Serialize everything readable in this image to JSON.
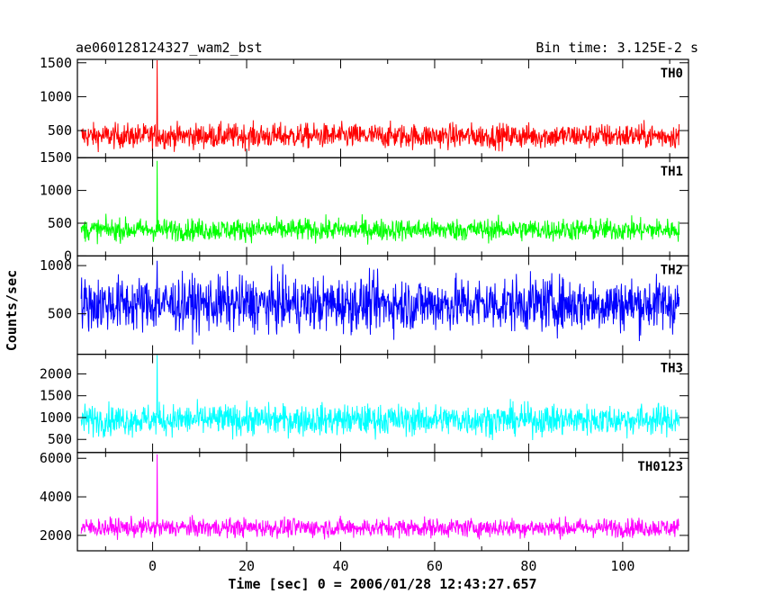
{
  "header": {
    "title": "ae060128124327_wam2_bst",
    "bin_time": "Bin time: 3.125E-2 s"
  },
  "axes": {
    "xlabel": "Time [sec] 0 = 2006/01/28 12:43:27.657",
    "ylabel": "Counts/sec"
  },
  "chart_data": {
    "type": "line",
    "xlim": [
      -16,
      114
    ],
    "x_ticks": [
      0,
      20,
      40,
      60,
      80,
      100
    ],
    "x_range_data": [
      -15.2,
      112.0
    ],
    "burst_time": 1.0,
    "panels": [
      {
        "name": "TH0",
        "color": "#ff0000",
        "ylim": [
          100,
          1550
        ],
        "yticks": [
          500,
          1000,
          1500
        ],
        "baseline": 420,
        "noise": 130,
        "burst_peak": 1550
      },
      {
        "name": "TH1",
        "color": "#00ff00",
        "ylim": [
          0,
          1500
        ],
        "yticks": [
          0,
          500,
          1000,
          1500
        ],
        "baseline": 400,
        "noise": 120,
        "burst_peak": 1450
      },
      {
        "name": "TH2",
        "color": "#0000ff",
        "ylim": [
          80,
          1100
        ],
        "yticks": [
          500,
          1000
        ],
        "baseline": 600,
        "noise": 200,
        "burst_peak": 1050
      },
      {
        "name": "TH3",
        "color": "#00ffff",
        "ylim": [
          200,
          2450
        ],
        "yticks": [
          500,
          1000,
          1500,
          2000
        ],
        "baseline": 950,
        "noise": 250,
        "burst_peak": 2450
      },
      {
        "name": "TH0123",
        "color": "#ff00ff",
        "ylim": [
          1200,
          6300
        ],
        "yticks": [
          2000,
          4000,
          6000
        ],
        "baseline": 2400,
        "noise": 350,
        "burst_peak": 6200
      }
    ]
  }
}
